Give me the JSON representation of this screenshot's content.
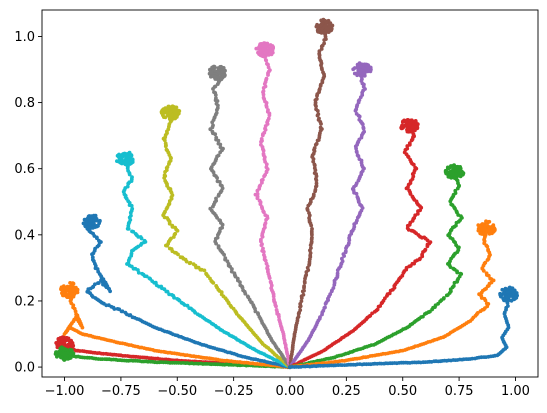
{
  "chart_data": {
    "type": "scatter",
    "title": "",
    "xlabel": "",
    "ylabel": "",
    "xlim": [
      -1.1,
      1.1
    ],
    "ylim": [
      -0.03,
      1.08
    ],
    "grid": false,
    "legend": "none",
    "x_ticks": [
      "−1.00",
      "−0.75",
      "−0.50",
      "−0.25",
      "0.00",
      "0.25",
      "0.50",
      "0.75",
      "1.00"
    ],
    "x_tick_values": [
      -1.0,
      -0.75,
      -0.5,
      -0.25,
      0.0,
      0.25,
      0.5,
      0.75,
      1.0
    ],
    "y_ticks": [
      "0.0",
      "0.2",
      "0.4",
      "0.6",
      "0.8",
      "1.0"
    ],
    "y_tick_values": [
      0.0,
      0.2,
      0.4,
      0.6,
      0.8,
      1.0
    ],
    "series": [
      {
        "color": "#d62728",
        "tip": [
          -1.0,
          0.07
        ],
        "points": [
          [
            0,
            0
          ],
          [
            -0.25,
            0.01
          ],
          [
            -0.5,
            0.02
          ],
          [
            -0.75,
            0.035
          ],
          [
            -0.95,
            0.05
          ],
          [
            -1.01,
            0.07
          ],
          [
            -1.0,
            0.09
          ]
        ]
      },
      {
        "color": "#2ca02c",
        "tip": [
          -1.0,
          0.04
        ],
        "points": [
          [
            0,
            0
          ],
          [
            -0.3,
            0.008
          ],
          [
            -0.6,
            0.015
          ],
          [
            -0.85,
            0.025
          ],
          [
            -0.99,
            0.035
          ],
          [
            -1.01,
            0.045
          ]
        ]
      },
      {
        "color": "#ff7f0e",
        "tip": [
          -0.98,
          0.23
        ],
        "points": [
          [
            0,
            0
          ],
          [
            -0.3,
            0.02
          ],
          [
            -0.6,
            0.05
          ],
          [
            -0.8,
            0.08
          ],
          [
            -0.92,
            0.1
          ],
          [
            -0.98,
            0.12
          ],
          [
            -1.0,
            0.1
          ],
          [
            -0.95,
            0.15
          ],
          [
            -0.92,
            0.12
          ],
          [
            -0.96,
            0.18
          ],
          [
            -0.98,
            0.22
          ],
          [
            -0.96,
            0.25
          ],
          [
            -0.98,
            0.26
          ]
        ]
      },
      {
        "color": "#1f77b4",
        "tip": [
          -0.88,
          0.44
        ],
        "points": [
          [
            0,
            0
          ],
          [
            -0.2,
            0.03
          ],
          [
            -0.4,
            0.07
          ],
          [
            -0.6,
            0.12
          ],
          [
            -0.75,
            0.17
          ],
          [
            -0.85,
            0.2
          ],
          [
            -0.9,
            0.23
          ],
          [
            -0.84,
            0.26
          ],
          [
            -0.8,
            0.23
          ],
          [
            -0.86,
            0.3
          ],
          [
            -0.88,
            0.34
          ],
          [
            -0.84,
            0.38
          ],
          [
            -0.9,
            0.42
          ],
          [
            -0.87,
            0.45
          ]
        ]
      },
      {
        "color": "#17becf",
        "tip": [
          -0.73,
          0.63
        ],
        "points": [
          [
            0,
            0
          ],
          [
            -0.15,
            0.05
          ],
          [
            -0.3,
            0.11
          ],
          [
            -0.45,
            0.18
          ],
          [
            -0.55,
            0.23
          ],
          [
            -0.65,
            0.28
          ],
          [
            -0.72,
            0.31
          ],
          [
            -0.7,
            0.35
          ],
          [
            -0.64,
            0.38
          ],
          [
            -0.72,
            0.42
          ],
          [
            -0.7,
            0.48
          ],
          [
            -0.74,
            0.53
          ],
          [
            -0.7,
            0.57
          ],
          [
            -0.73,
            0.62
          ],
          [
            -0.72,
            0.65
          ]
        ]
      },
      {
        "color": "#bcbd22",
        "tip": [
          -0.53,
          0.77
        ],
        "points": [
          [
            0,
            0
          ],
          [
            -0.12,
            0.07
          ],
          [
            -0.22,
            0.15
          ],
          [
            -0.3,
            0.22
          ],
          [
            -0.38,
            0.29
          ],
          [
            -0.48,
            0.33
          ],
          [
            -0.55,
            0.37
          ],
          [
            -0.5,
            0.41
          ],
          [
            -0.56,
            0.46
          ],
          [
            -0.52,
            0.52
          ],
          [
            -0.56,
            0.57
          ],
          [
            -0.53,
            0.63
          ],
          [
            -0.56,
            0.69
          ],
          [
            -0.53,
            0.74
          ],
          [
            -0.52,
            0.78
          ]
        ]
      },
      {
        "color": "#7f7f7f",
        "tip": [
          -0.32,
          0.89
        ],
        "points": [
          [
            0,
            0
          ],
          [
            -0.08,
            0.08
          ],
          [
            -0.15,
            0.17
          ],
          [
            -0.22,
            0.25
          ],
          [
            -0.28,
            0.32
          ],
          [
            -0.33,
            0.38
          ],
          [
            -0.3,
            0.43
          ],
          [
            -0.35,
            0.48
          ],
          [
            -0.3,
            0.54
          ],
          [
            -0.35,
            0.6
          ],
          [
            -0.3,
            0.66
          ],
          [
            -0.35,
            0.72
          ],
          [
            -0.32,
            0.79
          ],
          [
            -0.34,
            0.84
          ],
          [
            -0.3,
            0.88
          ],
          [
            -0.32,
            0.91
          ]
        ]
      },
      {
        "color": "#e377c2",
        "tip": [
          -0.11,
          0.96
        ],
        "points": [
          [
            0,
            0
          ],
          [
            -0.03,
            0.1
          ],
          [
            -0.07,
            0.2
          ],
          [
            -0.1,
            0.3
          ],
          [
            -0.13,
            0.38
          ],
          [
            -0.1,
            0.45
          ],
          [
            -0.15,
            0.52
          ],
          [
            -0.1,
            0.6
          ],
          [
            -0.13,
            0.68
          ],
          [
            -0.09,
            0.76
          ],
          [
            -0.12,
            0.83
          ],
          [
            -0.09,
            0.9
          ],
          [
            -0.12,
            0.95
          ],
          [
            -0.1,
            0.975
          ]
        ]
      },
      {
        "color": "#8c564b",
        "tip": [
          0.15,
          1.03
        ],
        "points": [
          [
            0,
            0
          ],
          [
            0.02,
            0.1
          ],
          [
            0.05,
            0.2
          ],
          [
            0.08,
            0.3
          ],
          [
            0.1,
            0.4
          ],
          [
            0.08,
            0.48
          ],
          [
            0.12,
            0.55
          ],
          [
            0.1,
            0.64
          ],
          [
            0.14,
            0.72
          ],
          [
            0.11,
            0.8
          ],
          [
            0.15,
            0.88
          ],
          [
            0.13,
            0.95
          ],
          [
            0.16,
            1.0
          ],
          [
            0.15,
            1.035
          ]
        ]
      },
      {
        "color": "#9467bd",
        "tip": [
          0.32,
          0.9
        ],
        "points": [
          [
            0,
            0
          ],
          [
            0.08,
            0.08
          ],
          [
            0.15,
            0.17
          ],
          [
            0.2,
            0.26
          ],
          [
            0.24,
            0.34
          ],
          [
            0.28,
            0.42
          ],
          [
            0.32,
            0.48
          ],
          [
            0.28,
            0.54
          ],
          [
            0.33,
            0.6
          ],
          [
            0.29,
            0.66
          ],
          [
            0.33,
            0.72
          ],
          [
            0.29,
            0.78
          ],
          [
            0.33,
            0.84
          ],
          [
            0.31,
            0.89
          ],
          [
            0.33,
            0.92
          ]
        ]
      },
      {
        "color": "#d62728",
        "tip": [
          0.53,
          0.73
        ],
        "points": [
          [
            0,
            0
          ],
          [
            0.15,
            0.05
          ],
          [
            0.28,
            0.11
          ],
          [
            0.38,
            0.17
          ],
          [
            0.46,
            0.24
          ],
          [
            0.52,
            0.3
          ],
          [
            0.58,
            0.33
          ],
          [
            0.62,
            0.38
          ],
          [
            0.52,
            0.42
          ],
          [
            0.58,
            0.48
          ],
          [
            0.52,
            0.54
          ],
          [
            0.56,
            0.6
          ],
          [
            0.51,
            0.65
          ],
          [
            0.55,
            0.7
          ],
          [
            0.53,
            0.75
          ]
        ]
      },
      {
        "color": "#2ca02c",
        "tip": [
          0.73,
          0.59
        ],
        "points": [
          [
            0,
            0
          ],
          [
            0.2,
            0.03
          ],
          [
            0.38,
            0.07
          ],
          [
            0.52,
            0.12
          ],
          [
            0.62,
            0.17
          ],
          [
            0.7,
            0.22
          ],
          [
            0.76,
            0.28
          ],
          [
            0.7,
            0.31
          ],
          [
            0.75,
            0.36
          ],
          [
            0.7,
            0.4
          ],
          [
            0.76,
            0.45
          ],
          [
            0.71,
            0.5
          ],
          [
            0.75,
            0.55
          ],
          [
            0.72,
            0.6
          ]
        ]
      },
      {
        "color": "#ff7f0e",
        "tip": [
          0.87,
          0.42
        ],
        "points": [
          [
            0,
            0
          ],
          [
            0.25,
            0.02
          ],
          [
            0.5,
            0.05
          ],
          [
            0.68,
            0.09
          ],
          [
            0.8,
            0.14
          ],
          [
            0.88,
            0.19
          ],
          [
            0.84,
            0.22
          ],
          [
            0.9,
            0.26
          ],
          [
            0.85,
            0.3
          ],
          [
            0.89,
            0.34
          ],
          [
            0.86,
            0.38
          ],
          [
            0.88,
            0.43
          ]
        ]
      },
      {
        "color": "#1f77b4",
        "tip": [
          0.97,
          0.22
        ],
        "points": [
          [
            0,
            0
          ],
          [
            0.3,
            0.008
          ],
          [
            0.6,
            0.015
          ],
          [
            0.8,
            0.025
          ],
          [
            0.92,
            0.035
          ],
          [
            0.96,
            0.06
          ],
          [
            0.94,
            0.09
          ],
          [
            0.97,
            0.12
          ],
          [
            0.95,
            0.16
          ],
          [
            0.97,
            0.2
          ],
          [
            0.96,
            0.24
          ]
        ]
      }
    ]
  }
}
